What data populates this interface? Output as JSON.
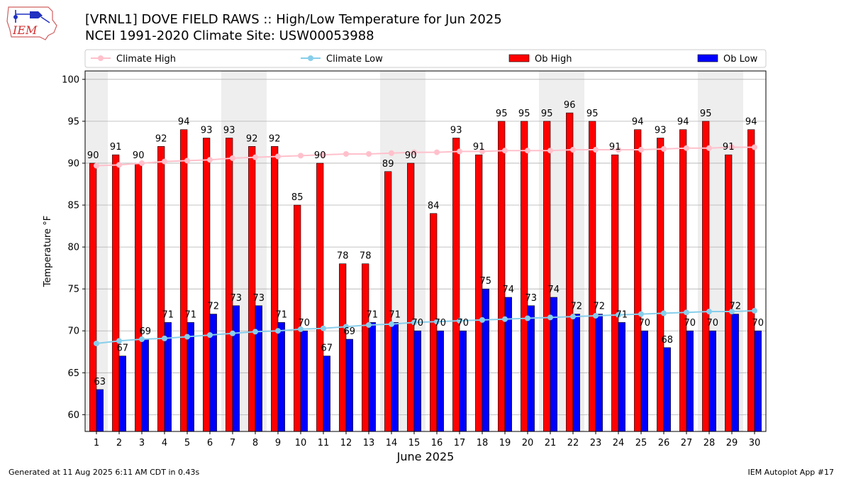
{
  "header": {
    "title_line1": "[VRNL1] DOVE FIELD RAWS :: High/Low Temperature for Jun 2025",
    "title_line2": "NCEI 1991-2020 Climate Site: USW00053988"
  },
  "logo": {
    "text": "IEM",
    "icon": "iem-iowa-logo-icon"
  },
  "footer": {
    "left": "Generated at 11 Aug 2025 6:11 AM CDT in 0.43s",
    "right": "IEM Autoplot App #17"
  },
  "colors": {
    "ob_high": "#ff0000",
    "ob_low": "#0000ff",
    "climate_high": "#ffc0cb",
    "climate_low": "#87ceeb",
    "weekend_shade": "#eeeeee"
  },
  "chart_data": {
    "type": "bar",
    "xlabel": "June 2025",
    "ylabel": "Temperature °F",
    "ylim": [
      58,
      101
    ],
    "yticks": [
      60,
      65,
      70,
      75,
      80,
      85,
      90,
      95,
      100
    ],
    "grid": true,
    "legend_position": "top",
    "categories": [
      "1",
      "2",
      "3",
      "4",
      "5",
      "6",
      "7",
      "8",
      "9",
      "10",
      "11",
      "12",
      "13",
      "14",
      "15",
      "16",
      "17",
      "18",
      "19",
      "20",
      "21",
      "22",
      "23",
      "24",
      "25",
      "26",
      "27",
      "28",
      "29",
      "30"
    ],
    "shaded_days": [
      1,
      7,
      8,
      14,
      15,
      21,
      22,
      28,
      29
    ],
    "legend": [
      {
        "label": "Climate High",
        "kind": "line",
        "color": "#ffc0cb"
      },
      {
        "label": "Climate Low",
        "kind": "line",
        "color": "#87ceeb"
      },
      {
        "label": "Ob High",
        "kind": "bar",
        "color": "#ff0000"
      },
      {
        "label": "Ob Low",
        "kind": "bar",
        "color": "#0000ff"
      }
    ],
    "series": [
      {
        "name": "Ob High",
        "type": "bar",
        "values": [
          90,
          91,
          90,
          92,
          94,
          93,
          93,
          92,
          92,
          85,
          90,
          78,
          78,
          89,
          90,
          84,
          93,
          91,
          95,
          95,
          95,
          96,
          95,
          91,
          94,
          93,
          94,
          95,
          91,
          94
        ]
      },
      {
        "name": "Ob Low",
        "type": "bar",
        "values": [
          63,
          67,
          69,
          71,
          71,
          72,
          73,
          73,
          71,
          70,
          67,
          69,
          71,
          71,
          70,
          70,
          70,
          75,
          74,
          73,
          74,
          72,
          72,
          71,
          70,
          68,
          70,
          70,
          72,
          70
        ]
      },
      {
        "name": "Climate High",
        "type": "line",
        "values": [
          89.7,
          89.8,
          90.0,
          90.2,
          90.3,
          90.4,
          90.6,
          90.7,
          90.8,
          90.9,
          91.0,
          91.1,
          91.1,
          91.2,
          91.3,
          91.3,
          91.4,
          91.4,
          91.5,
          91.5,
          91.5,
          91.6,
          91.6,
          91.6,
          91.6,
          91.7,
          91.8,
          91.8,
          91.9,
          91.9
        ]
      },
      {
        "name": "Climate Low",
        "type": "line",
        "values": [
          68.5,
          68.8,
          69.0,
          69.1,
          69.3,
          69.5,
          69.7,
          69.9,
          70.0,
          70.2,
          70.3,
          70.5,
          70.7,
          70.8,
          71.0,
          71.1,
          71.2,
          71.3,
          71.4,
          71.5,
          71.6,
          71.7,
          71.8,
          71.9,
          72.0,
          72.1,
          72.2,
          72.3,
          72.3,
          72.4
        ]
      }
    ]
  }
}
